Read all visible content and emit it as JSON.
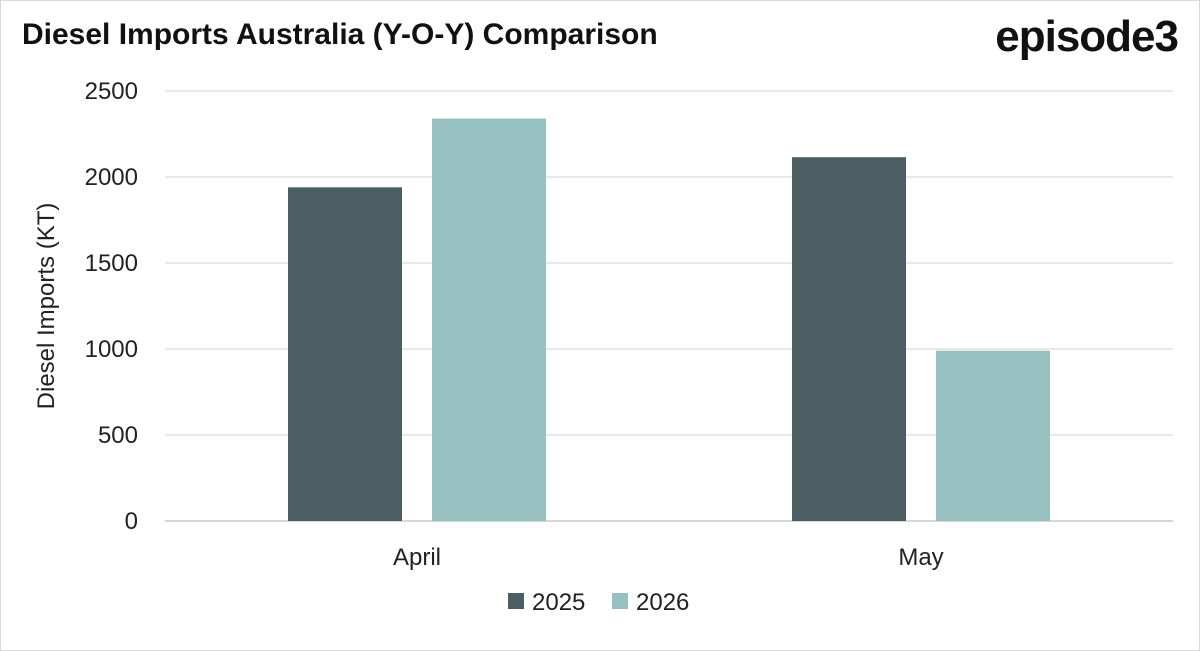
{
  "header": {
    "title": "Diesel Imports Australia (Y-O-Y) Comparison",
    "brand": "episode3"
  },
  "chart_data": {
    "type": "bar",
    "title": "Diesel Imports Australia (Y-O-Y) Comparison",
    "xlabel": "",
    "ylabel": "Diesel Imports (KT)",
    "categories": [
      "April",
      "May"
    ],
    "series": [
      {
        "name": "2025",
        "values": [
          1940,
          2115
        ],
        "color": "#4b5e61"
      },
      {
        "name": "2026",
        "values": [
          2340,
          990
        ],
        "color": "#97c1c0"
      }
    ],
    "ylim": [
      0,
      2500
    ],
    "yticks": [
      0,
      500,
      1000,
      1500,
      2000,
      2500
    ],
    "grid": true,
    "legend_position": "bottom-center"
  }
}
